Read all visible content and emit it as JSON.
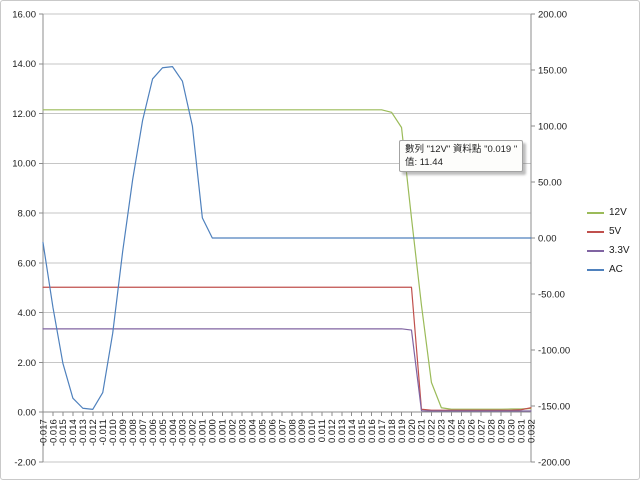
{
  "chart_data": {
    "type": "line",
    "title": "",
    "xlabel": "",
    "ylabel": "",
    "grid": "horizontal-major",
    "legend_position": "right",
    "x_labels": [
      "-0.017",
      "-0.016",
      "-0.015",
      "-0.014",
      "-0.013",
      "-0.012",
      "-0.011",
      "-0.010",
      "-0.009",
      "-0.008",
      "-0.007",
      "-0.006",
      "-0.005",
      "-0.004",
      "-0.003",
      "-0.002",
      "-0.001",
      "0.000",
      "0.001",
      "0.002",
      "0.003",
      "0.004",
      "0.005",
      "0.006",
      "0.007",
      "0.008",
      "0.009",
      "0.010",
      "0.011",
      "0.012",
      "0.013",
      "0.014",
      "0.015",
      "0.016",
      "0.017",
      "0.018",
      "0.019",
      "0.020",
      "0.021",
      "0.022",
      "0.023",
      "0.024",
      "0.025",
      "0.026",
      "0.027",
      "0.028",
      "0.029",
      "0.030",
      "0.031",
      "0.032"
    ],
    "primary_axis": {
      "min": -2,
      "max": 16,
      "tick_labels": [
        "16.00",
        "14.00",
        "12.00",
        "10.00",
        "8.00",
        "6.00",
        "4.00",
        "2.00",
        "0.00",
        "-2.00"
      ],
      "axis_crosses_at": 0
    },
    "secondary_axis": {
      "min": -200,
      "max": 200,
      "tick_labels": [
        "200.00",
        "150.00",
        "100.00",
        "50.00",
        "0.00",
        "-50.00",
        "-100.00",
        "-150.00",
        "-200.00"
      ]
    },
    "series": [
      {
        "name": "12V",
        "color": "#9BBB59",
        "axis": "primary",
        "values": [
          12.15,
          12.15,
          12.15,
          12.15,
          12.15,
          12.15,
          12.15,
          12.15,
          12.15,
          12.15,
          12.15,
          12.15,
          12.15,
          12.15,
          12.15,
          12.15,
          12.15,
          12.15,
          12.15,
          12.15,
          12.15,
          12.15,
          12.15,
          12.15,
          12.15,
          12.15,
          12.15,
          12.15,
          12.15,
          12.15,
          12.15,
          12.15,
          12.15,
          12.15,
          12.15,
          12.05,
          11.44,
          7.8,
          4.3,
          1.2,
          0.18,
          0.12,
          0.12,
          0.12,
          0.12,
          0.12,
          0.12,
          0.13,
          0.13,
          0.15
        ]
      },
      {
        "name": "5V",
        "color": "#C0504D",
        "axis": "primary",
        "values": [
          5.02,
          5.02,
          5.02,
          5.02,
          5.02,
          5.02,
          5.02,
          5.02,
          5.02,
          5.02,
          5.02,
          5.02,
          5.02,
          5.02,
          5.02,
          5.02,
          5.02,
          5.02,
          5.02,
          5.02,
          5.02,
          5.02,
          5.02,
          5.02,
          5.02,
          5.02,
          5.02,
          5.02,
          5.02,
          5.02,
          5.02,
          5.02,
          5.02,
          5.02,
          5.02,
          5.02,
          5.02,
          5.02,
          0.12,
          0.08,
          0.08,
          0.08,
          0.08,
          0.08,
          0.08,
          0.08,
          0.08,
          0.08,
          0.1,
          0.18
        ]
      },
      {
        "name": "3.3V",
        "color": "#8064A2",
        "axis": "primary",
        "values": [
          3.35,
          3.35,
          3.35,
          3.35,
          3.35,
          3.35,
          3.35,
          3.35,
          3.35,
          3.35,
          3.35,
          3.35,
          3.35,
          3.35,
          3.35,
          3.35,
          3.35,
          3.35,
          3.35,
          3.35,
          3.35,
          3.35,
          3.35,
          3.35,
          3.35,
          3.35,
          3.35,
          3.35,
          3.35,
          3.35,
          3.35,
          3.35,
          3.35,
          3.35,
          3.35,
          3.35,
          3.35,
          3.3,
          0.06,
          0.05,
          0.05,
          0.05,
          0.05,
          0.05,
          0.05,
          0.05,
          0.05,
          0.05,
          0.05,
          0.05
        ]
      },
      {
        "name": "AC",
        "color": "#4F81BD",
        "axis": "secondary",
        "values": [
          -4,
          -62,
          -112,
          -143,
          -152,
          -153,
          -138,
          -85,
          -12,
          52,
          105,
          142,
          152,
          153,
          140,
          100,
          18,
          0,
          0,
          0,
          0,
          0,
          0,
          0,
          0,
          0,
          0,
          0,
          0,
          0,
          0,
          0,
          0,
          0,
          0,
          0,
          0,
          0,
          0,
          0,
          0,
          0,
          0,
          0,
          0,
          0,
          0,
          0,
          0,
          0
        ]
      }
    ]
  },
  "tooltip": {
    "line1": "數列 \"12V\" 資料點 \"0.019 \"",
    "line2": "值: 11.44"
  },
  "colors": {
    "gridline": "#C6C6C6",
    "axis_line": "#8C8C8C",
    "chart_border": "#C9C9C9",
    "tooltip_border": "#A3A3A3",
    "label_text": "#1B1B1B"
  }
}
